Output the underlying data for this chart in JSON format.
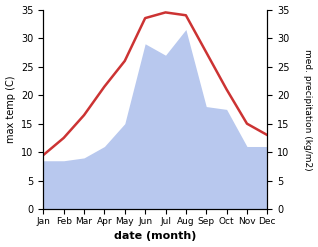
{
  "months": [
    "Jan",
    "Feb",
    "Mar",
    "Apr",
    "May",
    "Jun",
    "Jul",
    "Aug",
    "Sep",
    "Oct",
    "Nov",
    "Dec"
  ],
  "month_positions": [
    1,
    2,
    3,
    4,
    5,
    6,
    7,
    8,
    9,
    10,
    11,
    12
  ],
  "temp_max": [
    9.5,
    12.5,
    16.5,
    21.5,
    26.0,
    33.5,
    34.5,
    34.0,
    27.5,
    21.0,
    15.0,
    13.0
  ],
  "precipitation": [
    8.5,
    8.5,
    9.0,
    11.0,
    15.0,
    29.0,
    27.0,
    31.5,
    18.0,
    17.5,
    11.0,
    11.0
  ],
  "temp_color": "#cc3333",
  "precip_color": "#b8c8ee",
  "background_color": "#ffffff",
  "ylabel_left": "max temp (C)",
  "ylabel_right": "med. precipitation (kg/m2)",
  "xlabel": "date (month)",
  "ylim_left": [
    0,
    35
  ],
  "ylim_right": [
    0,
    35
  ],
  "temp_linewidth": 1.8,
  "yticks": [
    0,
    5,
    10,
    15,
    20,
    25,
    30,
    35
  ]
}
